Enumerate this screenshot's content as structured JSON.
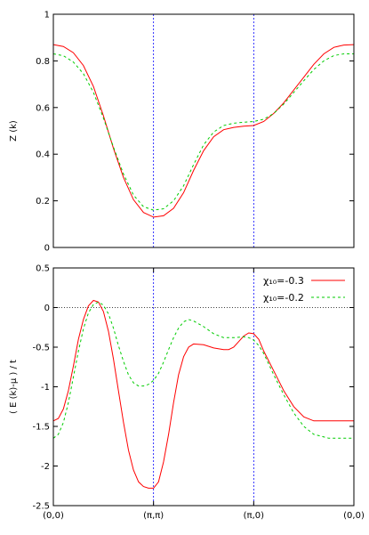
{
  "chart_data": [
    {
      "type": "line",
      "ylabel": "Z (k)",
      "ylim": [
        0,
        1
      ],
      "yticks": [
        "0",
        "0.2",
        "0.4",
        "0.6",
        "0.8",
        "1"
      ],
      "xlim": [
        0,
        3
      ],
      "xticks": [],
      "vlines": [
        1,
        2
      ],
      "grid": false,
      "series": [
        {
          "name": "",
          "color": "#ff0000",
          "dash": "solid",
          "points": [
            [
              0,
              0.87
            ],
            [
              0.1,
              0.862
            ],
            [
              0.2,
              0.835
            ],
            [
              0.3,
              0.78
            ],
            [
              0.4,
              0.69
            ],
            [
              0.5,
              0.565
            ],
            [
              0.6,
              0.425
            ],
            [
              0.7,
              0.3
            ],
            [
              0.8,
              0.205
            ],
            [
              0.9,
              0.15
            ],
            [
              1.0,
              0.13
            ],
            [
              1.1,
              0.136
            ],
            [
              1.2,
              0.168
            ],
            [
              1.3,
              0.235
            ],
            [
              1.4,
              0.33
            ],
            [
              1.5,
              0.415
            ],
            [
              1.6,
              0.475
            ],
            [
              1.7,
              0.505
            ],
            [
              1.8,
              0.515
            ],
            [
              1.9,
              0.52
            ],
            [
              2.0,
              0.523
            ],
            [
              2.1,
              0.54
            ],
            [
              2.2,
              0.575
            ],
            [
              2.3,
              0.62
            ],
            [
              2.4,
              0.675
            ],
            [
              2.5,
              0.73
            ],
            [
              2.6,
              0.785
            ],
            [
              2.7,
              0.83
            ],
            [
              2.8,
              0.858
            ],
            [
              2.9,
              0.868
            ],
            [
              3.0,
              0.87
            ]
          ]
        },
        {
          "name": "",
          "color": "#00cc00",
          "dash": "3,3",
          "points": [
            [
              0,
              0.83
            ],
            [
              0.1,
              0.822
            ],
            [
              0.2,
              0.795
            ],
            [
              0.3,
              0.745
            ],
            [
              0.4,
              0.665
            ],
            [
              0.5,
              0.555
            ],
            [
              0.6,
              0.43
            ],
            [
              0.7,
              0.315
            ],
            [
              0.8,
              0.225
            ],
            [
              0.9,
              0.175
            ],
            [
              1.0,
              0.16
            ],
            [
              1.1,
              0.166
            ],
            [
              1.2,
              0.2
            ],
            [
              1.3,
              0.265
            ],
            [
              1.4,
              0.355
            ],
            [
              1.5,
              0.44
            ],
            [
              1.6,
              0.495
            ],
            [
              1.7,
              0.523
            ],
            [
              1.8,
              0.533
            ],
            [
              1.9,
              0.537
            ],
            [
              2.0,
              0.54
            ],
            [
              2.1,
              0.55
            ],
            [
              2.2,
              0.575
            ],
            [
              2.3,
              0.615
            ],
            [
              2.4,
              0.665
            ],
            [
              2.5,
              0.715
            ],
            [
              2.6,
              0.763
            ],
            [
              2.7,
              0.8
            ],
            [
              2.8,
              0.823
            ],
            [
              2.9,
              0.83
            ],
            [
              3.0,
              0.83
            ]
          ]
        }
      ]
    },
    {
      "type": "line",
      "ylabel": "( E (k)-μ ) / t",
      "ylim": [
        -2.5,
        0.5
      ],
      "yticks": [
        "-2.5",
        "-2",
        "-1.5",
        "-1",
        "-0.5",
        "0",
        "0.5"
      ],
      "xlim": [
        0,
        3
      ],
      "xticks": [
        "(0,0)",
        "(π,π)",
        "(π,0)",
        "(0,0)"
      ],
      "vlines": [
        1,
        2
      ],
      "hline": 0,
      "grid": false,
      "legend_position": "top-right",
      "series": [
        {
          "name": "χ₁₀=-0.3",
          "color": "#ff0000",
          "dash": "solid",
          "points": [
            [
              0,
              -1.43
            ],
            [
              0.05,
              -1.4
            ],
            [
              0.1,
              -1.28
            ],
            [
              0.15,
              -1.05
            ],
            [
              0.2,
              -0.74
            ],
            [
              0.25,
              -0.4
            ],
            [
              0.3,
              -0.15
            ],
            [
              0.35,
              0.02
            ],
            [
              0.4,
              0.09
            ],
            [
              0.45,
              0.07
            ],
            [
              0.5,
              -0.05
            ],
            [
              0.55,
              -0.3
            ],
            [
              0.6,
              -0.65
            ],
            [
              0.65,
              -1.05
            ],
            [
              0.7,
              -1.45
            ],
            [
              0.75,
              -1.8
            ],
            [
              0.8,
              -2.05
            ],
            [
              0.85,
              -2.2
            ],
            [
              0.9,
              -2.26
            ],
            [
              0.95,
              -2.28
            ],
            [
              1.0,
              -2.28
            ],
            [
              1.05,
              -2.2
            ],
            [
              1.1,
              -1.95
            ],
            [
              1.15,
              -1.6
            ],
            [
              1.2,
              -1.2
            ],
            [
              1.25,
              -0.85
            ],
            [
              1.3,
              -0.62
            ],
            [
              1.35,
              -0.5
            ],
            [
              1.4,
              -0.46
            ],
            [
              1.5,
              -0.47
            ],
            [
              1.6,
              -0.51
            ],
            [
              1.7,
              -0.53
            ],
            [
              1.75,
              -0.53
            ],
            [
              1.8,
              -0.5
            ],
            [
              1.85,
              -0.43
            ],
            [
              1.9,
              -0.36
            ],
            [
              1.95,
              -0.32
            ],
            [
              2.0,
              -0.33
            ],
            [
              2.05,
              -0.4
            ],
            [
              2.1,
              -0.55
            ],
            [
              2.2,
              -0.8
            ],
            [
              2.3,
              -1.05
            ],
            [
              2.4,
              -1.25
            ],
            [
              2.5,
              -1.38
            ],
            [
              2.6,
              -1.43
            ],
            [
              2.75,
              -1.43
            ],
            [
              3.0,
              -1.43
            ]
          ]
        },
        {
          "name": "χ₁₀=-0.2",
          "color": "#00cc00",
          "dash": "3,3",
          "points": [
            [
              0,
              -1.65
            ],
            [
              0.05,
              -1.6
            ],
            [
              0.1,
              -1.45
            ],
            [
              0.15,
              -1.2
            ],
            [
              0.2,
              -0.88
            ],
            [
              0.25,
              -0.55
            ],
            [
              0.3,
              -0.27
            ],
            [
              0.35,
              -0.07
            ],
            [
              0.4,
              0.04
            ],
            [
              0.45,
              0.07
            ],
            [
              0.5,
              0.03
            ],
            [
              0.55,
              -0.08
            ],
            [
              0.6,
              -0.26
            ],
            [
              0.65,
              -0.48
            ],
            [
              0.7,
              -0.68
            ],
            [
              0.75,
              -0.85
            ],
            [
              0.8,
              -0.95
            ],
            [
              0.85,
              -0.99
            ],
            [
              0.9,
              -0.99
            ],
            [
              0.95,
              -0.97
            ],
            [
              1.0,
              -0.92
            ],
            [
              1.05,
              -0.83
            ],
            [
              1.1,
              -0.69
            ],
            [
              1.15,
              -0.53
            ],
            [
              1.2,
              -0.38
            ],
            [
              1.25,
              -0.26
            ],
            [
              1.3,
              -0.18
            ],
            [
              1.35,
              -0.15
            ],
            [
              1.4,
              -0.17
            ],
            [
              1.5,
              -0.24
            ],
            [
              1.6,
              -0.33
            ],
            [
              1.7,
              -0.38
            ],
            [
              1.8,
              -0.38
            ],
            [
              1.9,
              -0.37
            ],
            [
              1.95,
              -0.38
            ],
            [
              2.0,
              -0.41
            ],
            [
              2.05,
              -0.48
            ],
            [
              2.1,
              -0.58
            ],
            [
              2.2,
              -0.85
            ],
            [
              2.3,
              -1.1
            ],
            [
              2.4,
              -1.33
            ],
            [
              2.5,
              -1.5
            ],
            [
              2.6,
              -1.6
            ],
            [
              2.75,
              -1.65
            ],
            [
              3.0,
              -1.65
            ]
          ]
        }
      ]
    }
  ]
}
